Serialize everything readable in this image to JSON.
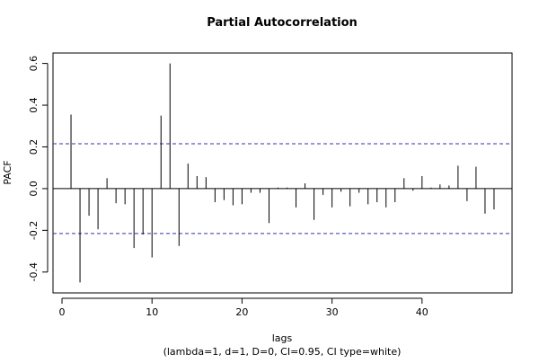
{
  "chart_data": {
    "type": "bar",
    "title": "Partial Autocorrelation",
    "xlabel": "lags",
    "ylabel": "PACF",
    "subtitle": "(lambda=1, d=1, D=0, CI=0.95, CI type=white)",
    "xlim": [
      -1,
      50
    ],
    "ylim": [
      -0.5,
      0.65
    ],
    "xticks": [
      0,
      10,
      20,
      30,
      40
    ],
    "xtick_labels": [
      "0",
      "10",
      "20",
      "30",
      "40"
    ],
    "yticks": [
      -0.4,
      -0.2,
      0.0,
      0.2,
      0.4,
      0.6
    ],
    "ytick_labels": [
      "-0.4",
      "-0.2",
      "0.0",
      "0.2",
      "0.4",
      "0.6"
    ],
    "confidence_limit": 0.215,
    "colors": {
      "bars": "#000000",
      "ci_lines": "#3333aa",
      "zero_line": "#000000",
      "frame": "#000000"
    },
    "series": [
      {
        "lags": [
          1,
          2,
          3,
          4,
          5,
          6,
          7,
          8,
          9,
          10,
          11,
          12,
          13,
          14,
          15,
          16,
          17,
          18,
          19,
          20,
          21,
          22,
          23,
          24,
          25,
          26,
          27,
          28,
          29,
          30,
          31,
          32,
          33,
          34,
          35,
          36,
          37,
          38,
          39,
          40,
          41,
          42,
          43,
          44,
          45,
          46,
          47,
          48
        ],
        "values": [
          0.355,
          -0.45,
          -0.13,
          -0.195,
          0.05,
          -0.07,
          -0.075,
          -0.285,
          -0.22,
          -0.33,
          0.35,
          0.6,
          -0.275,
          0.12,
          0.06,
          0.055,
          -0.065,
          -0.055,
          -0.08,
          -0.075,
          -0.02,
          -0.02,
          -0.165,
          0.005,
          0.005,
          -0.09,
          0.025,
          -0.15,
          -0.03,
          -0.09,
          -0.015,
          -0.085,
          -0.02,
          -0.075,
          -0.065,
          -0.09,
          -0.065,
          0.05,
          -0.01,
          0.06,
          0.005,
          0.02,
          0.015,
          0.11,
          -0.06,
          0.105,
          -0.12,
          -0.1
        ]
      }
    ]
  }
}
